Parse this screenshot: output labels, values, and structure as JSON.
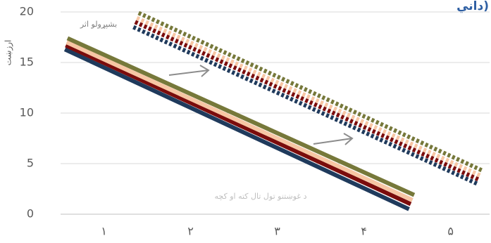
{
  "chart_data": {
    "type": "line",
    "title": "داني)",
    "y_label": "ارزښت",
    "annotations": [
      "بشپړولو اثر",
      "د غوښتنو تول تال کته او کچه"
    ],
    "xlim": [
      0.5,
      5.45
    ],
    "xticks": [
      {
        "value": 1,
        "label": "١"
      },
      {
        "value": 2,
        "label": "٢"
      },
      {
        "value": 3,
        "label": "٣"
      },
      {
        "value": 4,
        "label": "۴"
      },
      {
        "value": 5,
        "label": "۵"
      }
    ],
    "ylim": [
      0,
      20
    ],
    "yticks": [
      0,
      5,
      10,
      15,
      20
    ],
    "grid": true,
    "series": [
      {
        "color": "#1f3a5c",
        "dashed": false,
        "x": [
          0.55,
          4.52
        ],
        "values": [
          16.3,
          0.5
        ]
      },
      {
        "color": "#7b0c0c",
        "dashed": false,
        "x": [
          0.56,
          4.54
        ],
        "values": [
          16.7,
          1.0
        ]
      },
      {
        "color": "#f7c6a4",
        "dashed": false,
        "x": [
          0.57,
          4.56
        ],
        "values": [
          17.0,
          1.4
        ]
      },
      {
        "color": "#76783a",
        "dashed": false,
        "x": [
          0.58,
          4.58
        ],
        "values": [
          17.4,
          1.9
        ]
      },
      {
        "color": "#1f3a5c",
        "dashed": true,
        "x": [
          1.34,
          5.31
        ],
        "values": [
          18.5,
          3.0
        ]
      },
      {
        "color": "#7b0c0c",
        "dashed": true,
        "x": [
          1.36,
          5.33
        ],
        "values": [
          19.0,
          3.4
        ]
      },
      {
        "color": "#f7c6a4",
        "dashed": true,
        "x": [
          1.38,
          5.35
        ],
        "values": [
          19.4,
          3.8
        ]
      },
      {
        "color": "#76783a",
        "dashed": true,
        "x": [
          1.4,
          5.37
        ],
        "values": [
          19.9,
          4.3
        ]
      }
    ]
  }
}
